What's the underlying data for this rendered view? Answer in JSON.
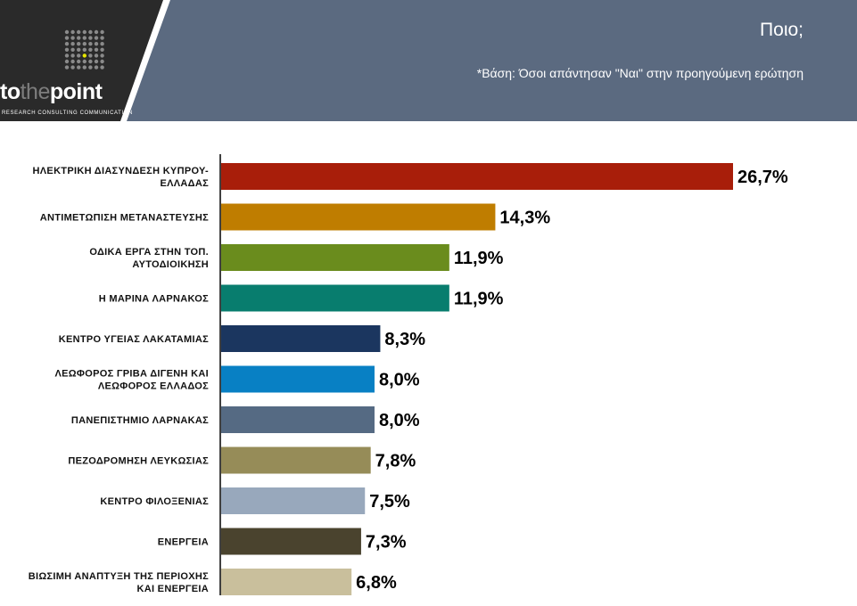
{
  "header": {
    "title": "Ποιο;",
    "subtitle": "*Βάση: Όσοι απάντησαν \"Ναι\" στην προηγούμενη ερώτηση",
    "logo_word_start": "to",
    "logo_word_mid": "the",
    "logo_word_end": "point",
    "logo_tagline": "RESEARCH CONSULTING COMMUNICATION",
    "colors": {
      "dark": "#2a2a2a",
      "panel": "#5b6a80"
    }
  },
  "chart_data": {
    "type": "bar",
    "orientation": "horizontal",
    "categories": [
      [
        "ΗΛΕΚΤΡΙΚΗ ΔΙΑΣΥΝΔΕΣΗ ΚΥΠΡΟΥ-",
        "ΕΛΛΑΔΑΣ"
      ],
      [
        "ΑΝΤΙΜΕΤΩΠΙΣΗ ΜΕΤΑΝΑΣΤΕΥΣΗΣ"
      ],
      [
        "ΟΔΙΚΑ ΕΡΓΑ ΣΤΗΝ ΤΟΠ.",
        "ΑΥΤΟΔΙΟΙΚΗΣΗ"
      ],
      [
        "Η ΜΑΡΙΝΑ ΛΑΡΝΑΚΟΣ"
      ],
      [
        "ΚΕΝΤΡΟ ΥΓΕΙΑΣ ΛΑΚΑΤΑΜΙΑΣ"
      ],
      [
        "ΛΕΩΦΟΡΟΣ ΓΡΙΒΑ ΔΙΓΕΝΗ ΚΑΙ",
        "ΛΕΩΦΟΡΟΣ ΕΛΛΑΔΟΣ"
      ],
      [
        "ΠΑΝΕΠΙΣΤΗΜΙΟ ΛΑΡΝΑΚΑΣ"
      ],
      [
        "ΠΕΖΟΔΡΟΜΗΣΗ ΛΕΥΚΩΣΙΑΣ"
      ],
      [
        "ΚΕΝΤΡΟ ΦΙΛΟΞΕΝΙΑΣ"
      ],
      [
        "ΕΝΕΡΓΕΙΑ"
      ],
      [
        "ΒΙΩΣΙΜΗ ΑΝΑΠΤΥΞΗ ΤΗΣ ΠΕΡΙΟΧΗΣ",
        "ΚΑΙ ΕΝΕΡΓΕΙΑ"
      ]
    ],
    "values": [
      26.7,
      14.3,
      11.9,
      11.9,
      8.3,
      8.0,
      8.0,
      7.8,
      7.5,
      7.3,
      6.8
    ],
    "value_labels": [
      "26,7%",
      "14,3%",
      "11,9%",
      "11,9%",
      "8,3%",
      "8,0%",
      "8,0%",
      "7,8%",
      "7,5%",
      "7,3%",
      "6,8%"
    ],
    "colors": [
      "#a81e0a",
      "#bf7d00",
      "#6a8c1d",
      "#087d6e",
      "#1b365f",
      "#0880c4",
      "#556a83",
      "#968c58",
      "#98a8bc",
      "#4a432e",
      "#c9bf9c"
    ],
    "xlim": [
      0,
      30
    ],
    "grid": false,
    "legend": "none"
  }
}
